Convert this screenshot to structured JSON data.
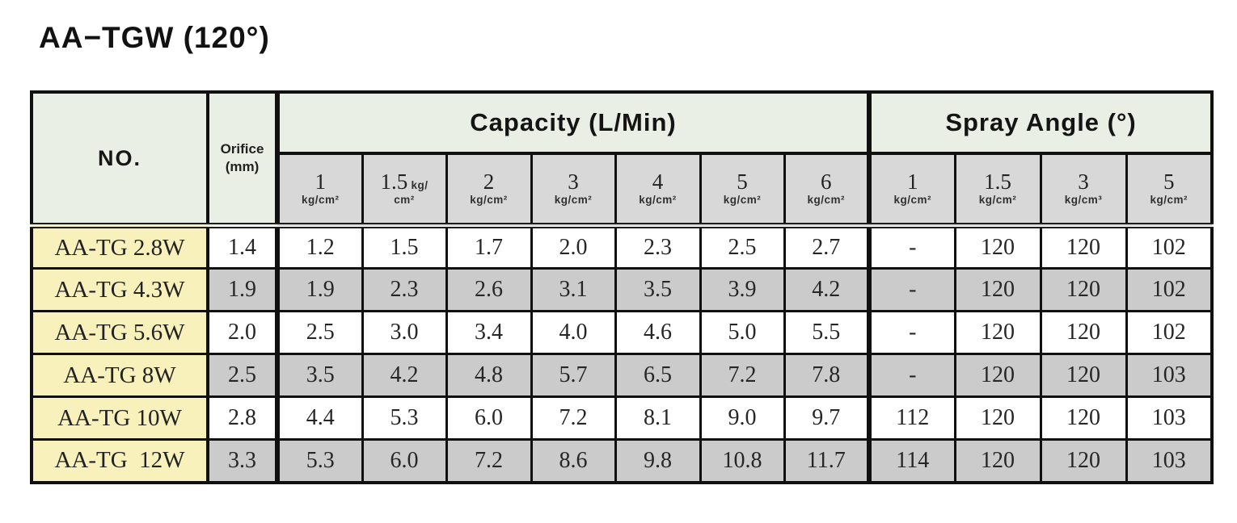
{
  "title": "AA−TGW (120°)",
  "colors": {
    "header_green": "#e9efe4",
    "subheader_gray": "#d8d8d8",
    "row_name_yellow": "#f8f1bc",
    "stripe_gray": "#cbcbcb",
    "border_black": "#101010"
  },
  "table": {
    "corner_header": "NO.",
    "orifice": {
      "line1": "Orifice",
      "line2": "(mm)"
    },
    "groups": [
      {
        "label": "Capacity (L/Min)",
        "cols": 7
      },
      {
        "label": "Spray Angle (°)",
        "cols": 4
      }
    ],
    "pressure_headers": [
      {
        "value": "1",
        "unit": "kg/cm²"
      },
      {
        "value": "1.5",
        "unit": "kg/cm²",
        "inline": true
      },
      {
        "value": "2",
        "unit": "kg/cm²"
      },
      {
        "value": "3",
        "unit": "kg/cm²"
      },
      {
        "value": "4",
        "unit": "kg/cm²"
      },
      {
        "value": "5",
        "unit": "kg/cm²"
      },
      {
        "value": "6",
        "unit": "kg/cm²"
      },
      {
        "value": "1",
        "unit": "kg/cm²"
      },
      {
        "value": "1.5",
        "unit": "kg/cm²"
      },
      {
        "value": "3",
        "unit": "kg/cm³"
      },
      {
        "value": "5",
        "unit": "kg/cm²"
      }
    ],
    "rows": [
      {
        "no": "AA-TG 2.8W",
        "orifice": "1.4",
        "capacity": [
          "1.2",
          "1.5",
          "1.7",
          "2.0",
          "2.3",
          "2.5",
          "2.7"
        ],
        "spray": [
          "-",
          "120",
          "120",
          "102"
        ]
      },
      {
        "no": "AA-TG 4.3W",
        "orifice": "1.9",
        "capacity": [
          "1.9",
          "2.3",
          "2.6",
          "3.1",
          "3.5",
          "3.9",
          "4.2"
        ],
        "spray": [
          "-",
          "120",
          "120",
          "102"
        ]
      },
      {
        "no": "AA-TG 5.6W",
        "orifice": "2.0",
        "capacity": [
          "2.5",
          "3.0",
          "3.4",
          "4.0",
          "4.6",
          "5.0",
          "5.5"
        ],
        "spray": [
          "-",
          "120",
          "120",
          "102"
        ]
      },
      {
        "no": "AA-TG 8W",
        "orifice": "2.5",
        "capacity": [
          "3.5",
          "4.2",
          "4.8",
          "5.7",
          "6.5",
          "7.2",
          "7.8"
        ],
        "spray": [
          "-",
          "120",
          "120",
          "103"
        ]
      },
      {
        "no": "AA-TG 10W",
        "orifice": "2.8",
        "capacity": [
          "4.4",
          "5.3",
          "6.0",
          "7.2",
          "8.1",
          "9.0",
          "9.7"
        ],
        "spray": [
          "112",
          "120",
          "120",
          "103"
        ]
      },
      {
        "no": "AA-TG  12W",
        "orifice": "3.3",
        "capacity": [
          "5.3",
          "6.0",
          "7.2",
          "8.6",
          "9.8",
          "10.8",
          "11.7"
        ],
        "spray": [
          "114",
          "120",
          "120",
          "103"
        ]
      }
    ]
  }
}
